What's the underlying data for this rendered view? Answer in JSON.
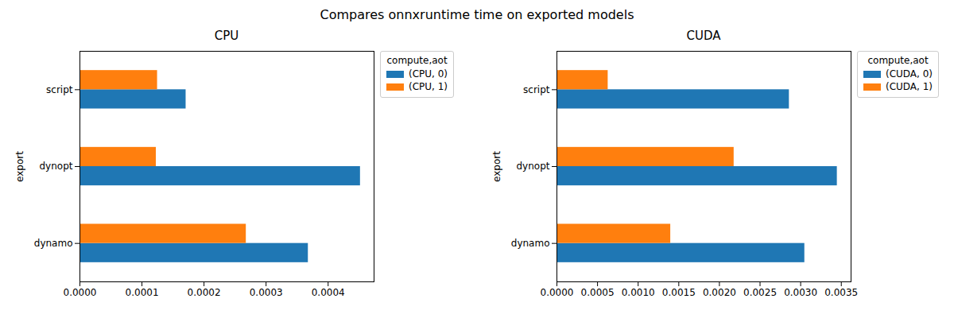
{
  "title": "Compares onnxruntime time on exported models",
  "chart_data": [
    {
      "type": "bar",
      "orientation": "horizontal",
      "title": "CPU",
      "y_label": "export",
      "categories": [
        "dynamo",
        "dynopt",
        "script"
      ],
      "series": [
        {
          "name": "(CPU, 0)",
          "color": "#1f77b4",
          "values": [
            0.000368,
            0.000452,
            0.000171
          ]
        },
        {
          "name": "(CPU, 1)",
          "color": "#ff7f0e",
          "values": [
            0.000268,
            0.000123,
            0.000125
          ]
        }
      ],
      "xlim": [
        0,
        0.000474
      ],
      "xticks": [
        {
          "value": 0,
          "label": "0.0000"
        },
        {
          "value": 0.0001,
          "label": "0.0001"
        },
        {
          "value": 0.0002,
          "label": "0.0002"
        },
        {
          "value": 0.0003,
          "label": "0.0003"
        },
        {
          "value": 0.0004,
          "label": "0.0004"
        }
      ],
      "legend": "upper right",
      "legend_title": "compute,aot",
      "grid": false
    },
    {
      "type": "bar",
      "orientation": "horizontal",
      "title": "CUDA",
      "y_label": "export",
      "categories": [
        "dynamo",
        "dynopt",
        "script"
      ],
      "series": [
        {
          "name": "(CUDA, 0)",
          "color": "#1f77b4",
          "values": [
            0.00305,
            0.00345,
            0.00286
          ]
        },
        {
          "name": "(CUDA, 1)",
          "color": "#ff7f0e",
          "values": [
            0.0014,
            0.00218,
            0.00063
          ]
        }
      ],
      "xlim": [
        0,
        0.00362
      ],
      "xticks": [
        {
          "value": 0,
          "label": "0.0000"
        },
        {
          "value": 0.0005,
          "label": "0.0005"
        },
        {
          "value": 0.001,
          "label": "0.0010"
        },
        {
          "value": 0.0015,
          "label": "0.0015"
        },
        {
          "value": 0.002,
          "label": "0.0020"
        },
        {
          "value": 0.0025,
          "label": "0.0025"
        },
        {
          "value": 0.003,
          "label": "0.0030"
        },
        {
          "value": 0.0035,
          "label": "0.0035"
        }
      ],
      "legend": "upper right",
      "legend_title": "compute,aot",
      "grid": false
    }
  ]
}
